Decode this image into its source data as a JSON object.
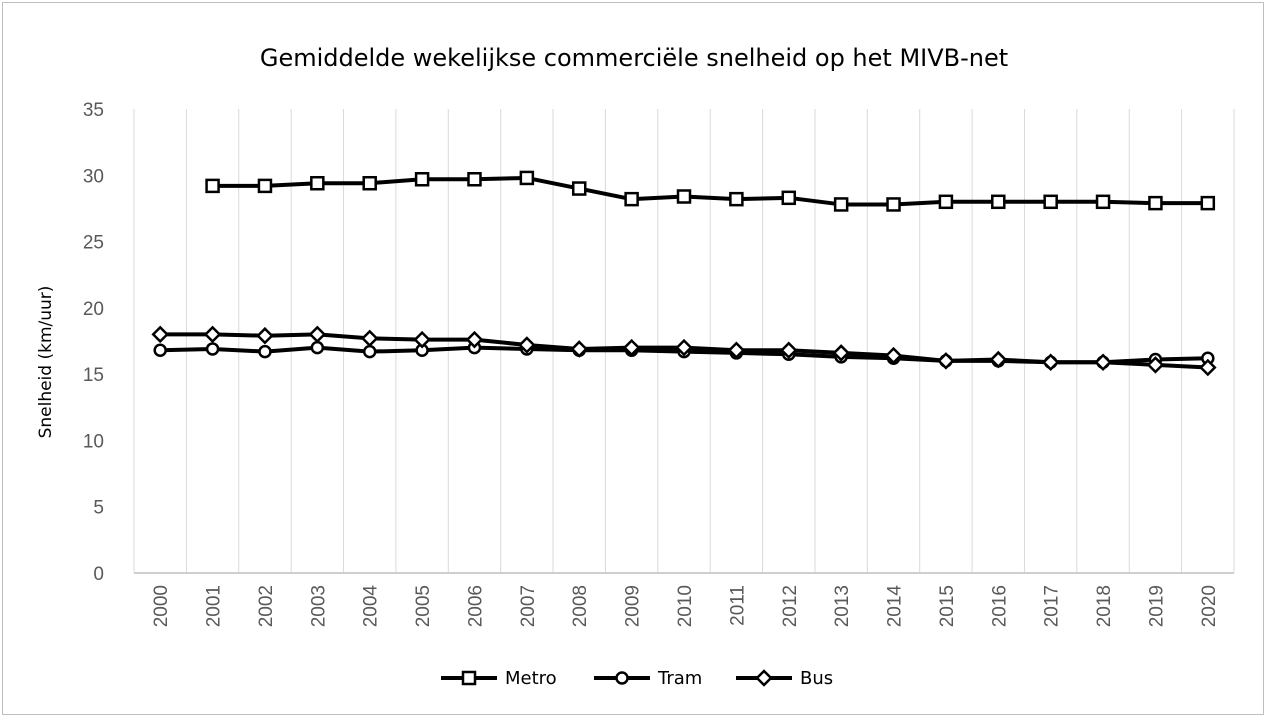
{
  "chart_data": {
    "type": "line",
    "title": "Gemiddelde wekelijkse commerciële snelheid op het MIVB-net",
    "xlabel": "",
    "ylabel": "Snelheid (km/uur)",
    "ylim": [
      0,
      35
    ],
    "yticks": [
      0,
      5,
      10,
      15,
      20,
      25,
      30,
      35
    ],
    "grid": "vertical",
    "legend_position": "bottom",
    "categories": [
      "2000",
      "2001",
      "2002",
      "2003",
      "2004",
      "2005",
      "2006",
      "2007",
      "2008",
      "2009",
      "2010",
      "2011",
      "2012",
      "2013",
      "2014",
      "2015",
      "2016",
      "2017",
      "2018",
      "2019",
      "2020"
    ],
    "series": [
      {
        "name": "Metro",
        "marker": "square",
        "values": [
          null,
          29.2,
          29.2,
          29.4,
          29.4,
          29.7,
          29.7,
          29.8,
          29.0,
          28.2,
          28.4,
          28.2,
          28.3,
          27.8,
          27.8,
          28.0,
          28.0,
          28.0,
          28.0,
          27.9,
          27.9
        ]
      },
      {
        "name": "Tram",
        "marker": "circle",
        "values": [
          16.8,
          16.9,
          16.7,
          17.0,
          16.7,
          16.8,
          17.0,
          16.9,
          16.8,
          16.8,
          16.7,
          16.6,
          16.5,
          16.3,
          16.2,
          16.0,
          16.0,
          15.9,
          15.9,
          16.1,
          16.2
        ]
      },
      {
        "name": "Bus",
        "marker": "diamond",
        "values": [
          18.0,
          18.0,
          17.9,
          18.0,
          17.7,
          17.6,
          17.6,
          17.2,
          16.9,
          17.0,
          17.0,
          16.8,
          16.8,
          16.6,
          16.4,
          16.0,
          16.1,
          15.9,
          15.9,
          15.7,
          15.5
        ]
      }
    ]
  }
}
